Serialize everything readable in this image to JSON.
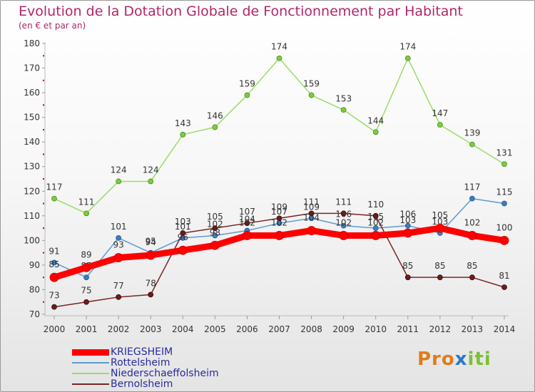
{
  "title": "Evolution de la Dotation Globale de Fonctionnement par Habitant",
  "subtitle": "(en € et par an)",
  "logo": {
    "parts": [
      "Pro",
      "x",
      "iti"
    ],
    "colors": [
      "#e07c1c",
      "#2a78c8",
      "#7cc034"
    ]
  },
  "chart_data": {
    "type": "line",
    "x": [
      "2000",
      "2001",
      "2002",
      "2003",
      "2004",
      "2005",
      "2006",
      "2007",
      "2008",
      "2009",
      "2010",
      "2011",
      "2012",
      "2013",
      "2014"
    ],
    "ylim": [
      70,
      180
    ],
    "yticks": [
      70,
      80,
      90,
      100,
      110,
      120,
      130,
      140,
      150,
      160,
      170,
      180
    ],
    "grid": false,
    "legend_position": "bottom-left",
    "series": [
      {
        "name": "KRIEGSHEIM",
        "color": "#ff0000",
        "values": [
          85,
          89,
          93,
          94,
          96,
          98,
          102,
          102,
          104,
          102,
          102,
          103,
          105,
          102,
          100
        ]
      },
      {
        "name": "Rottelsheim",
        "color": "#5b9bd5",
        "values": [
          91,
          85,
          101,
          95,
          101,
          102,
          104,
          107,
          109,
          106,
          105,
          106,
          103,
          117,
          115
        ]
      },
      {
        "name": "Niederschaeffolsheim",
        "color": "#99dd66",
        "values": [
          117,
          111,
          124,
          124,
          143,
          146,
          159,
          174,
          159,
          153,
          144,
          174,
          147,
          139,
          131
        ]
      },
      {
        "name": "Bernolsheim",
        "color": "#7b2424",
        "values": [
          73,
          75,
          77,
          78,
          103,
          105,
          107,
          109,
          111,
          111,
          110,
          85,
          85,
          85,
          81
        ]
      }
    ]
  }
}
